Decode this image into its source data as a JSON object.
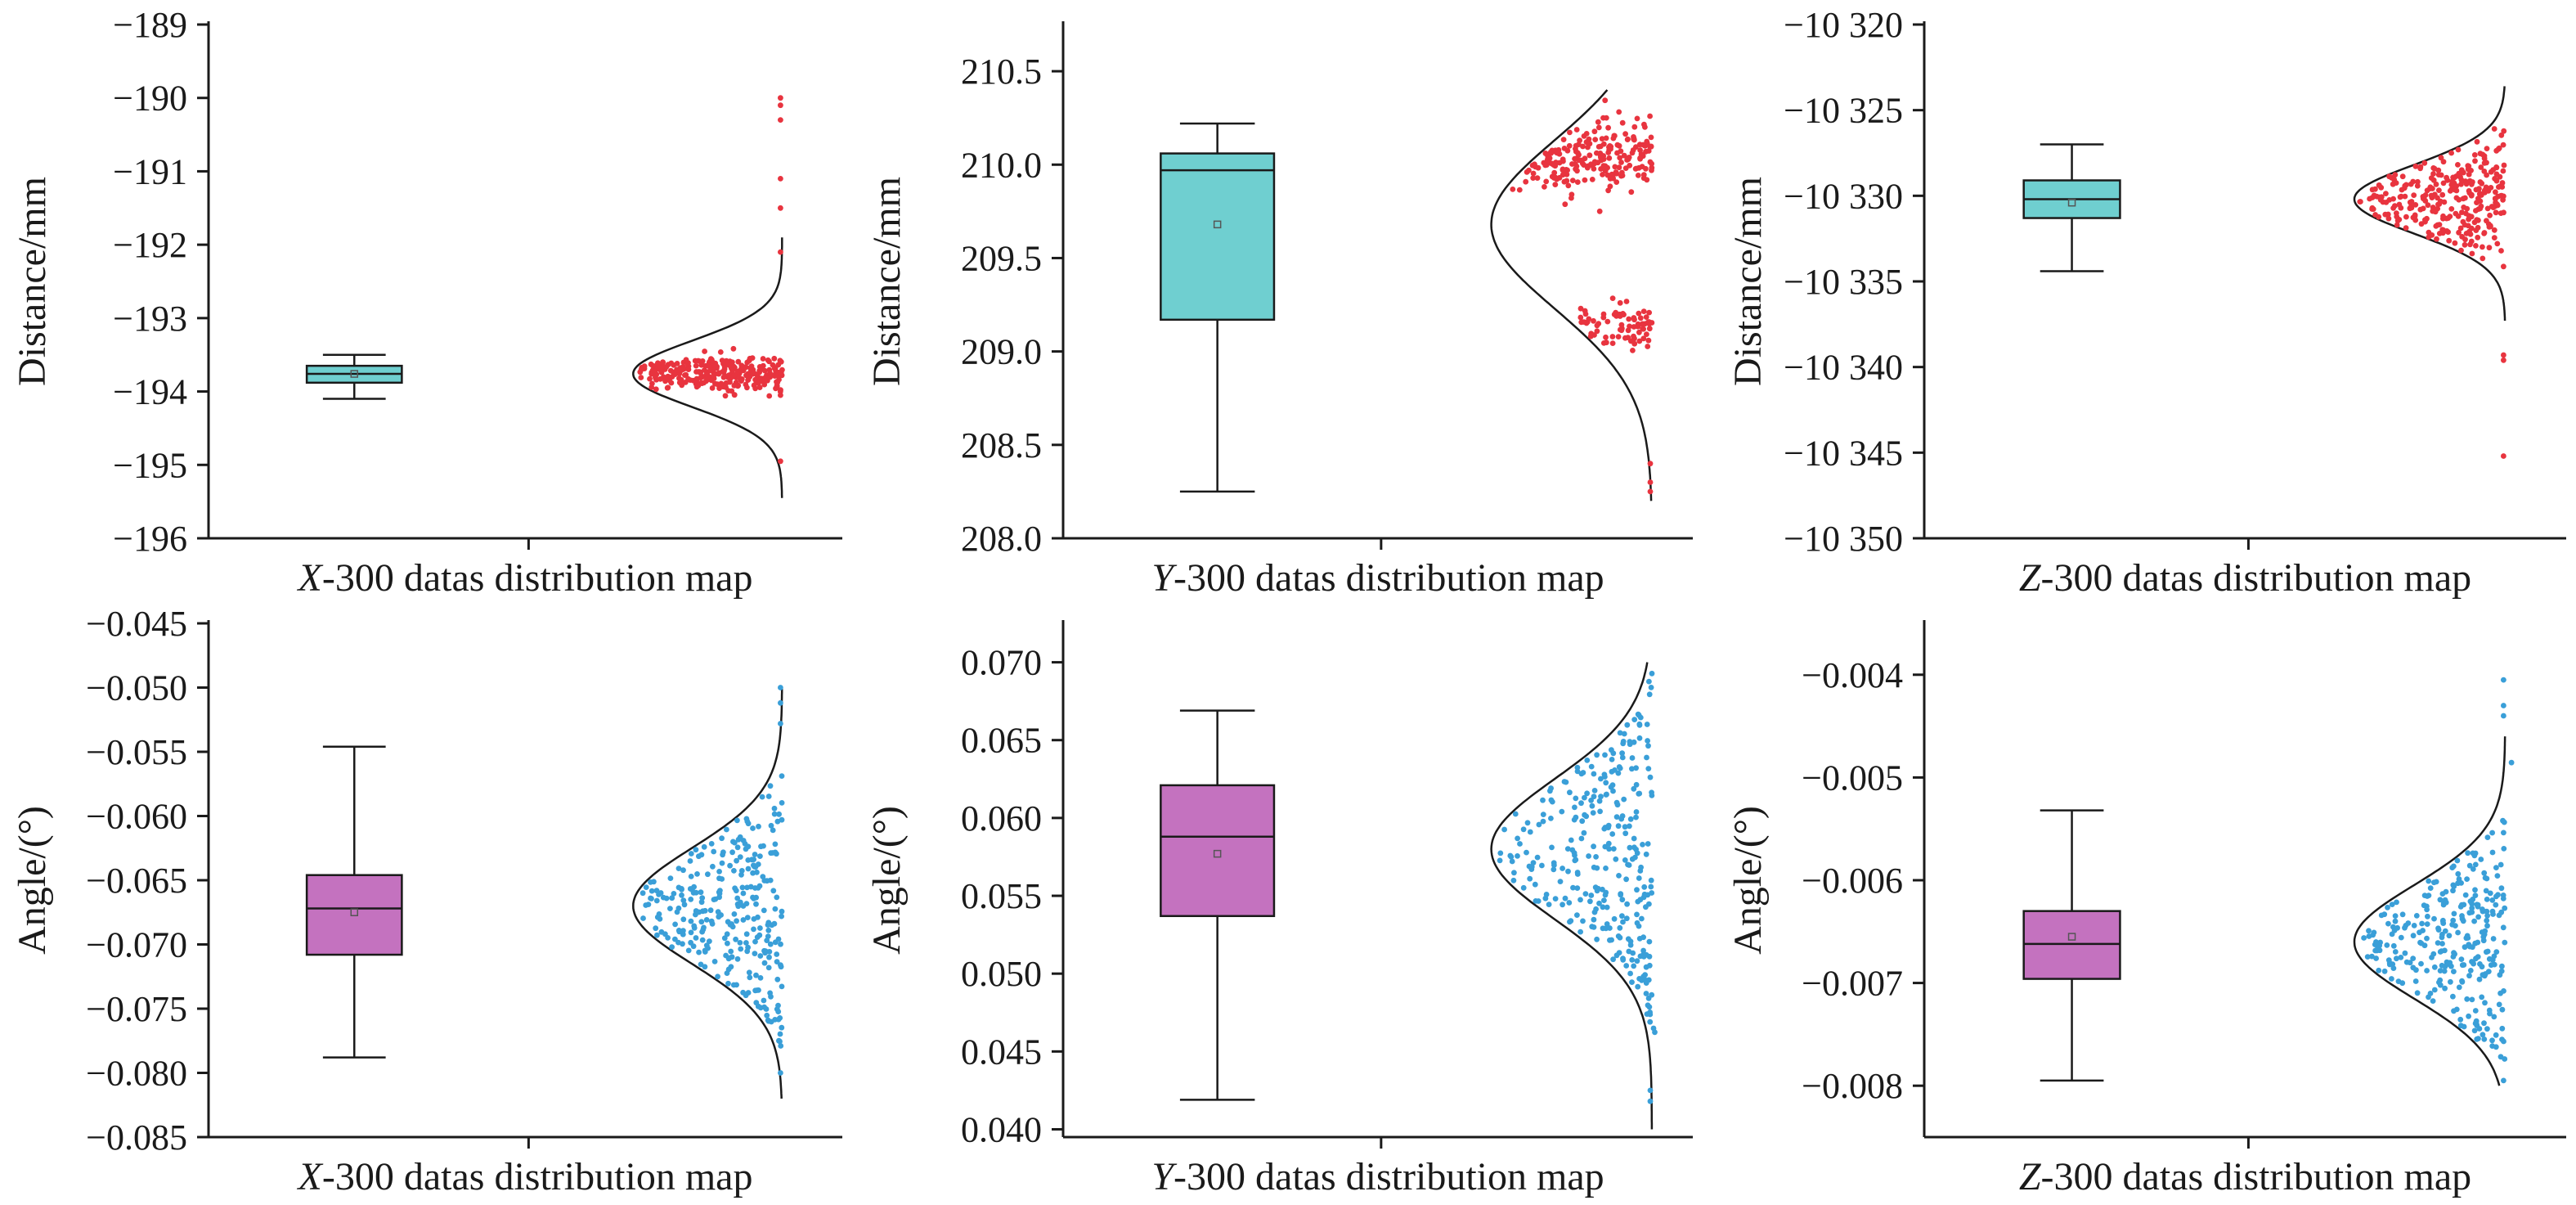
{
  "figure": {
    "colors": {
      "distance_box": "#6fcfd0",
      "angle_box": "#c472bf",
      "distance_points": "#e8343f",
      "angle_points": "#3a9fd8",
      "curve": "#1a1a1a",
      "axis": "#1a1a1a"
    }
  },
  "chart_data": [
    {
      "type": "box",
      "panel": "x-distance",
      "caption": {
        "axis": "X",
        "rest": "-300 datas distribution map"
      },
      "ylabel": "Distance/mm",
      "ylim": [
        -196,
        -189
      ],
      "yticks": [
        -196,
        -195,
        -194,
        -193,
        -192,
        -191,
        -190,
        -189
      ],
      "ytick_labels": [
        "−196",
        "−195",
        "−194",
        "−193",
        "−192",
        "−191",
        "−190",
        "−189"
      ],
      "box": {
        "whisker_low": -194.1,
        "q1": -193.88,
        "median": -193.76,
        "q3": -193.65,
        "whisker_high": -193.5,
        "mean": -193.76
      },
      "distribution": {
        "mean": -193.76,
        "sd": 0.45,
        "y_min": -195.45,
        "y_max": -191.9
      },
      "points": {
        "count": 300,
        "center": -193.75,
        "spread": 0.12,
        "outliers": [
          -190.0,
          -190.1,
          -190.3,
          -191.1,
          -191.5,
          -192.1,
          -194.05,
          -194.95
        ]
      }
    },
    {
      "type": "box",
      "panel": "y-distance",
      "caption": {
        "axis": "Y",
        "rest": "-300 datas distribution map"
      },
      "ylabel": "Distance/mm",
      "ylim": [
        208.0,
        210.75
      ],
      "yticks": [
        208.0,
        208.5,
        209.0,
        209.5,
        210.0,
        210.5
      ],
      "ytick_labels": [
        "208.0",
        "208.5",
        "209.0",
        "209.5",
        "210.0",
        "210.5"
      ],
      "box": {
        "whisker_low": 208.25,
        "q1": 209.17,
        "median": 209.97,
        "q3": 210.06,
        "whisker_high": 210.22,
        "mean": 209.68
      },
      "distribution": {
        "mean": 209.68,
        "sd": 0.45,
        "y_min": 208.2,
        "y_max": 210.4
      },
      "points": {
        "count": 300,
        "clusters": [
          {
            "center": 210.03,
            "spread": 0.09,
            "share": 0.72
          },
          {
            "center": 209.15,
            "spread": 0.05,
            "share": 0.28
          }
        ],
        "outliers": [
          208.25,
          208.3,
          208.4
        ]
      }
    },
    {
      "type": "box",
      "panel": "z-distance",
      "caption": {
        "axis": "Z",
        "rest": "-300 datas distribution map"
      },
      "ylabel": "Distance/mm",
      "ylim": [
        -10350,
        -10320
      ],
      "yticks": [
        -10350,
        -10345,
        -10340,
        -10335,
        -10330,
        -10325,
        -10320
      ],
      "ytick_labels": [
        "−10 350",
        "−10 345",
        "−10 340",
        "−10 335",
        "−10 330",
        "−10 325",
        "−10 320"
      ],
      "box": {
        "whisker_low": -10334.4,
        "q1": -10331.3,
        "median": -10330.2,
        "q3": -10329.1,
        "whisker_high": -10327.0,
        "mean": -10330.4
      },
      "distribution": {
        "mean": -10330.2,
        "sd": 2.0,
        "y_min": -10337.3,
        "y_max": -10323.6
      },
      "points": {
        "count": 300,
        "center": -10330.3,
        "spread": 1.4,
        "outliers": [
          -10339.3,
          -10339.6,
          -10345.2
        ]
      }
    },
    {
      "type": "box",
      "panel": "x-angle",
      "caption": {
        "axis": "X",
        "rest": "-300 datas distribution map"
      },
      "ylabel": "Angle/(°)",
      "ylim": [
        -0.085,
        -0.045
      ],
      "yticks": [
        -0.085,
        -0.08,
        -0.075,
        -0.07,
        -0.065,
        -0.06,
        -0.055,
        -0.05,
        -0.045
      ],
      "ytick_labels": [
        "−0.085",
        "−0.080",
        "−0.075",
        "−0.070",
        "−0.065",
        "−0.060",
        "−0.055",
        "−0.050",
        "−0.045"
      ],
      "box": {
        "whisker_low": -0.0788,
        "q1": -0.0708,
        "median": -0.0672,
        "q3": -0.0646,
        "whisker_high": -0.0546,
        "mean": -0.0675
      },
      "distribution": {
        "mean": -0.067,
        "sd": 0.0045,
        "y_min": -0.082,
        "y_max": -0.05
      },
      "points": {
        "count": 300,
        "center": -0.0672,
        "spread": 0.0042,
        "outliers": [
          -0.05,
          -0.0512,
          -0.0528,
          -0.08
        ]
      }
    },
    {
      "type": "box",
      "panel": "y-angle",
      "caption": {
        "axis": "Y",
        "rest": "-300 datas distribution map"
      },
      "ylabel": "Angle/(°)",
      "ylim": [
        0.0395,
        0.0725
      ],
      "yticks": [
        0.04,
        0.045,
        0.05,
        0.055,
        0.06,
        0.065,
        0.07
      ],
      "ytick_labels": [
        "0.040",
        "0.045",
        "0.050",
        "0.055",
        "0.060",
        "0.065",
        "0.070"
      ],
      "box": {
        "whisker_low": 0.0419,
        "q1": 0.0537,
        "median": 0.0588,
        "q3": 0.0621,
        "whisker_high": 0.0669,
        "mean": 0.0577
      },
      "distribution": {
        "mean": 0.058,
        "sd": 0.0045,
        "y_min": 0.04,
        "y_max": 0.07
      },
      "points": {
        "count": 300,
        "center": 0.058,
        "spread": 0.0052,
        "outliers": [
          0.0418,
          0.0425
        ]
      }
    },
    {
      "type": "box",
      "panel": "z-angle",
      "caption": {
        "axis": "Z",
        "rest": "-300 datas distribution map"
      },
      "ylabel": "Angle/(°)",
      "ylim": [
        -0.0085,
        -0.0035
      ],
      "yticks": [
        -0.008,
        -0.007,
        -0.006,
        -0.005,
        -0.004
      ],
      "ytick_labels": [
        "−0.008",
        "−0.007",
        "−0.006",
        "−0.005",
        "−0.004"
      ],
      "box": {
        "whisker_low": -0.00795,
        "q1": -0.00696,
        "median": -0.00662,
        "q3": -0.0063,
        "whisker_high": -0.00532,
        "mean": -0.00655
      },
      "distribution": {
        "mean": -0.0066,
        "sd": 0.00055,
        "y_min": -0.008,
        "y_max": -0.0046
      },
      "points": {
        "count": 300,
        "center": -0.00662,
        "spread": 0.00045,
        "outliers": [
          -0.00405,
          -0.0043,
          -0.0044,
          -0.00795
        ]
      }
    }
  ]
}
